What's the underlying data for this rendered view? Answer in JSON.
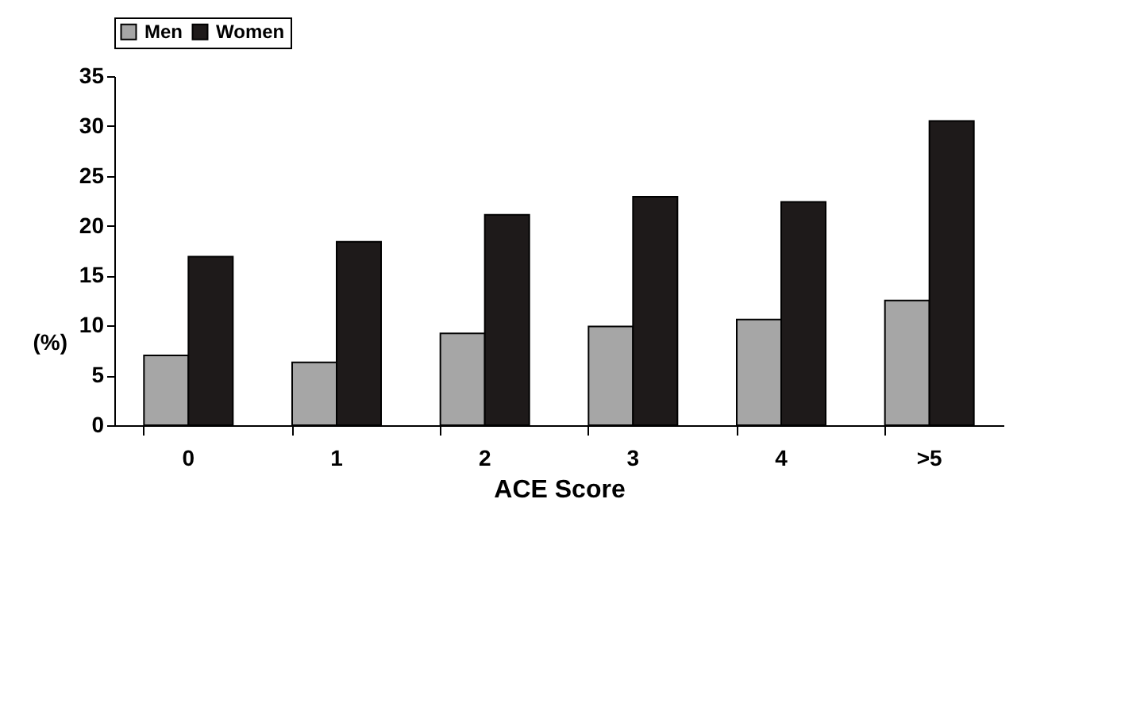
{
  "chart_data": {
    "type": "bar",
    "xlabel": "ACE Score",
    "ylabel": "(%)",
    "categories": [
      "0",
      "1",
      "2",
      "3",
      "4",
      ">5"
    ],
    "series": [
      {
        "name": "Men",
        "color": "#a6a6a6",
        "values": [
          7.0,
          6.3,
          9.2,
          9.9,
          10.6,
          12.5
        ]
      },
      {
        "name": "Women",
        "color": "#1e1a1a",
        "values": [
          16.9,
          18.4,
          21.1,
          22.9,
          22.4,
          30.5
        ]
      }
    ],
    "ylim": [
      0,
      35
    ],
    "yticks": [
      0,
      5,
      10,
      15,
      20,
      25,
      30,
      35
    ],
    "grid": false,
    "legend": "top"
  }
}
